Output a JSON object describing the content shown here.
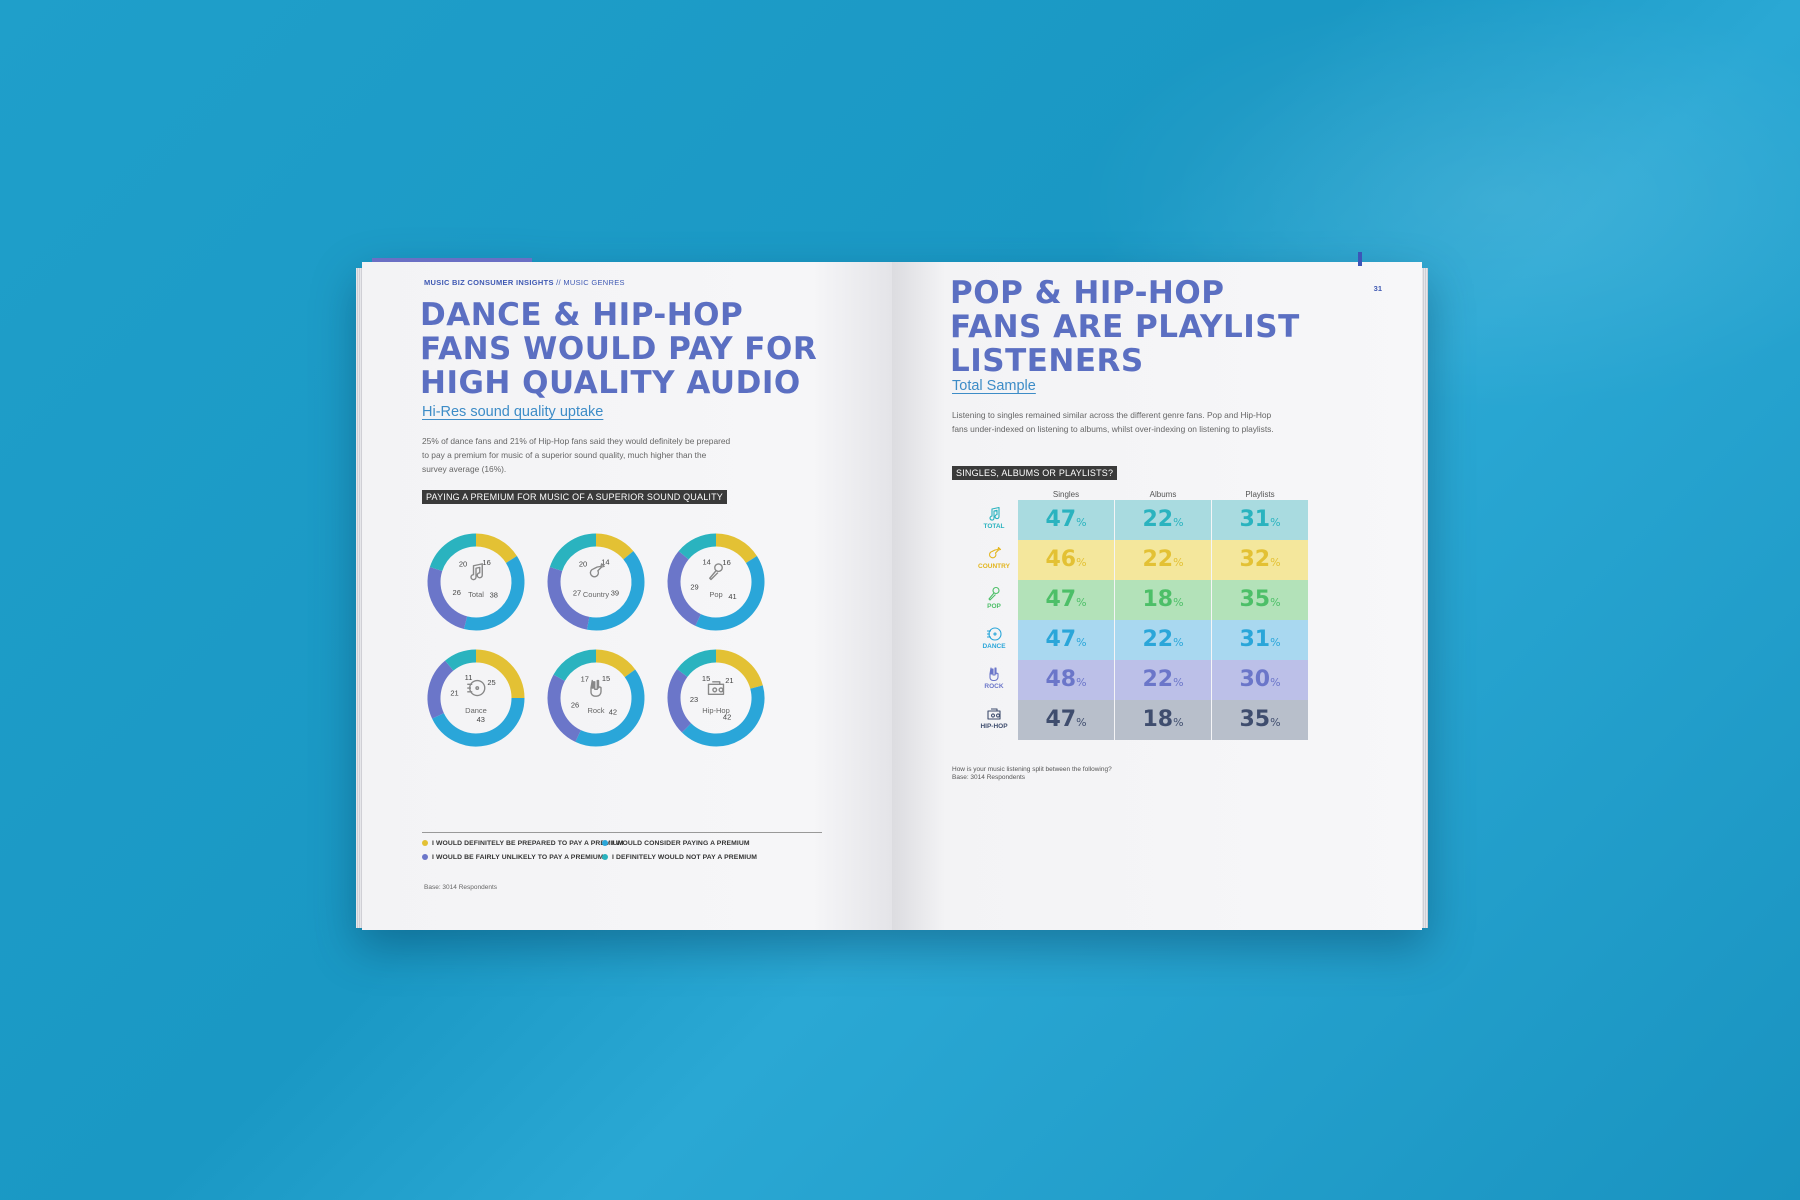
{
  "left_page": {
    "running_head_bold": "MUSIC BIZ CONSUMER INSIGHTS",
    "running_head_rest": "// MUSIC GENRES",
    "headline": [
      "DANCE & HIP-HOP",
      "FANS WOULD PAY FOR",
      "HIGH QUALITY AUDIO"
    ],
    "subhead": "Hi-Res sound quality uptake",
    "body": [
      "25% of dance fans and 21% of Hip-Hop fans said they would definitely be prepared",
      "to pay a premium for music of a superior sound quality, much higher than the",
      "survey average (16%)."
    ],
    "chart_label": "PAYING A PREMIUM FOR MUSIC OF A SUPERIOR SOUND QUALITY",
    "legend": [
      {
        "label": "I WOULD DEFINITELY BE PREPARED TO PAY A PREMIUM",
        "color": "#e3c134"
      },
      {
        "label": "I WOULD CONSIDER PAYING A PREMIUM",
        "color": "#2aa6d9"
      },
      {
        "label": "I WOULD BE FAIRLY UNLIKELY TO PAY A PREMIUM",
        "color": "#6b76c9"
      },
      {
        "label": "I DEFINITELY WOULD NOT PAY A PREMIUM",
        "color": "#2ab3bf"
      }
    ],
    "base_note": "Base: 3014 Respondents"
  },
  "right_page": {
    "page_number": "31",
    "headline": [
      "POP & HIP-HOP",
      "FANS ARE PLAYLIST",
      "LISTENERS"
    ],
    "subhead": "Total Sample",
    "body": [
      "Listening to singles remained similar across the different genre fans. Pop and Hip-Hop",
      "fans under-indexed on listening to albums, whilst over-indexing on listening to playlists."
    ],
    "table_label": "SINGLES, ALBUMS OR PLAYLISTS?",
    "columns": [
      "Singles",
      "Albums",
      "Playlists"
    ],
    "footnote": [
      "How is your music listening split between the following?",
      "Base: 3014 Respondents"
    ]
  },
  "chart_data": [
    {
      "type": "pie",
      "title": "PAYING A PREMIUM FOR MUSIC OF A SUPERIOR SOUND QUALITY",
      "series_names": [
        "I WOULD DEFINITELY BE PREPARED TO PAY A PREMIUM",
        "I WOULD CONSIDER PAYING A PREMIUM",
        "I WOULD BE FAIRLY UNLIKELY TO PAY A PREMIUM",
        "I DEFINITELY WOULD NOT PAY A PREMIUM"
      ],
      "colors": [
        "#e3c134",
        "#2aa6d9",
        "#6b76c9",
        "#2ab3bf"
      ],
      "donuts": [
        {
          "category": "Total",
          "icon": "music-note-icon",
          "values": [
            16,
            38,
            26,
            20
          ]
        },
        {
          "category": "Country",
          "icon": "guitar-icon",
          "values": [
            14,
            39,
            27,
            20
          ]
        },
        {
          "category": "Pop",
          "icon": "microphone-icon",
          "values": [
            16,
            41,
            29,
            14
          ]
        },
        {
          "category": "Dance",
          "icon": "turntable-icon",
          "values": [
            25,
            43,
            21,
            11
          ]
        },
        {
          "category": "Rock",
          "icon": "rock-hand-icon",
          "values": [
            15,
            42,
            26,
            17
          ]
        },
        {
          "category": "Hip-Hop",
          "icon": "boombox-icon",
          "values": [
            21,
            42,
            23,
            15
          ]
        }
      ]
    },
    {
      "type": "table",
      "title": "SINGLES, ALBUMS OR PLAYLISTS?",
      "columns": [
        "Singles",
        "Albums",
        "Playlists"
      ],
      "unit": "%",
      "rows": [
        {
          "label": "TOTAL",
          "icon": "music-note-icon",
          "values": [
            "47",
            "22",
            "31"
          ],
          "bg": "#a9dbe0",
          "fg": "#2ab3bf",
          "label_color": "#2ab3bf"
        },
        {
          "label": "COUNTRY",
          "icon": "guitar-icon",
          "values": [
            "46",
            "22",
            "32"
          ],
          "bg": "#f4e79c",
          "fg": "#e3c134",
          "label_color": "#e3b51c"
        },
        {
          "label": "POP",
          "icon": "microphone-icon",
          "values": [
            "47",
            "18",
            "35"
          ],
          "bg": "#b3e2b9",
          "fg": "#4dbf68",
          "label_color": "#4dbf68"
        },
        {
          "label": "DANCE",
          "icon": "turntable-icon",
          "values": [
            "47",
            "22",
            "31"
          ],
          "bg": "#a9d8f0",
          "fg": "#2aa6d9",
          "label_color": "#2aa6d9"
        },
        {
          "label": "ROCK",
          "icon": "rock-hand-icon",
          "values": [
            "48",
            "22",
            "30"
          ],
          "bg": "#bcc0e8",
          "fg": "#6b76c9",
          "label_color": "#6b76c9"
        },
        {
          "label": "HIP-HOP",
          "icon": "boombox-icon",
          "values": [
            "47",
            "18",
            "35"
          ],
          "bg": "#b8bfcb",
          "fg": "#3f4d6e",
          "label_color": "#3f4d6e"
        }
      ]
    }
  ]
}
